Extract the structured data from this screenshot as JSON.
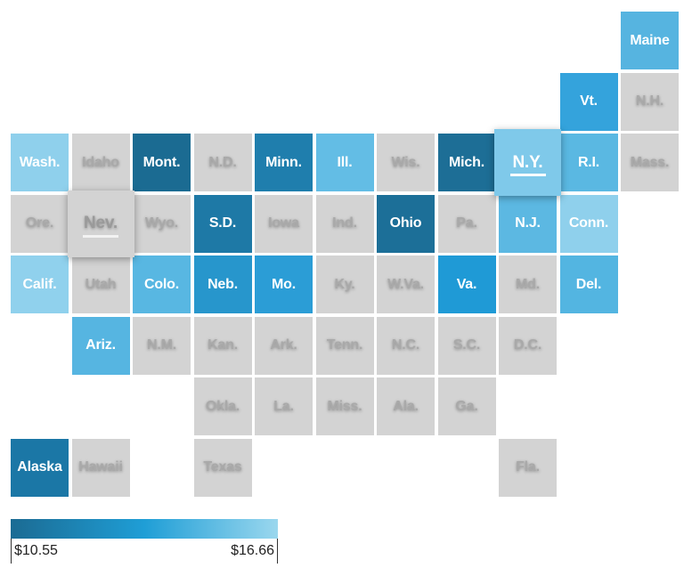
{
  "legend": {
    "min_label": "$10.55",
    "max_label": "$16.66",
    "min_color": "#1b6b93",
    "mid_color": "#1f9ed6",
    "max_color": "#9ad7ee"
  },
  "nodata_color": "#d3d3d3",
  "states": [
    {
      "abbr": "Maine",
      "col": 10,
      "row": 0,
      "color": "#56b4e0"
    },
    {
      "abbr": "Vt.",
      "col": 9,
      "row": 1,
      "color": "#34a3dc"
    },
    {
      "abbr": "N.H.",
      "col": 10,
      "row": 1,
      "color": null
    },
    {
      "abbr": "Wash.",
      "col": 0,
      "row": 2,
      "color": "#8fd0ec"
    },
    {
      "abbr": "Idaho",
      "col": 1,
      "row": 2,
      "color": null
    },
    {
      "abbr": "Mont.",
      "col": 2,
      "row": 2,
      "color": "#1b6b92"
    },
    {
      "abbr": "N.D.",
      "col": 3,
      "row": 2,
      "color": null
    },
    {
      "abbr": "Minn.",
      "col": 4,
      "row": 2,
      "color": "#1f7ead"
    },
    {
      "abbr": "Ill.",
      "col": 5,
      "row": 2,
      "color": "#63bde5"
    },
    {
      "abbr": "Wis.",
      "col": 6,
      "row": 2,
      "color": null
    },
    {
      "abbr": "Mich.",
      "col": 7,
      "row": 2,
      "color": "#1d6e96"
    },
    {
      "abbr": "N.Y.",
      "col": 8,
      "row": 2,
      "color": "#7fc9ea",
      "highlight": true
    },
    {
      "abbr": "R.I.",
      "col": 9,
      "row": 2,
      "color": "#5ab8e2"
    },
    {
      "abbr": "Mass.",
      "col": 10,
      "row": 2,
      "color": null
    },
    {
      "abbr": "Ore.",
      "col": 0,
      "row": 3,
      "color": null
    },
    {
      "abbr": "Nev.",
      "col": 1,
      "row": 3,
      "color": null,
      "highlight": true
    },
    {
      "abbr": "Wyo.",
      "col": 2,
      "row": 3,
      "color": null
    },
    {
      "abbr": "S.D.",
      "col": 3,
      "row": 3,
      "color": "#1e79a6"
    },
    {
      "abbr": "Iowa",
      "col": 4,
      "row": 3,
      "color": null
    },
    {
      "abbr": "Ind.",
      "col": 5,
      "row": 3,
      "color": null
    },
    {
      "abbr": "Ohio",
      "col": 6,
      "row": 3,
      "color": "#1c6f98"
    },
    {
      "abbr": "Pa.",
      "col": 7,
      "row": 3,
      "color": null
    },
    {
      "abbr": "N.J.",
      "col": 8,
      "row": 3,
      "color": "#5cb8e2"
    },
    {
      "abbr": "Conn.",
      "col": 9,
      "row": 3,
      "color": "#8fd0ec"
    },
    {
      "abbr": "Calif.",
      "col": 0,
      "row": 4,
      "color": "#90d1ed"
    },
    {
      "abbr": "Utah",
      "col": 1,
      "row": 4,
      "color": null
    },
    {
      "abbr": "Colo.",
      "col": 2,
      "row": 4,
      "color": "#58b7e2"
    },
    {
      "abbr": "Neb.",
      "col": 3,
      "row": 4,
      "color": "#2796cc"
    },
    {
      "abbr": "Mo.",
      "col": 4,
      "row": 4,
      "color": "#2b9dd6"
    },
    {
      "abbr": "Ky.",
      "col": 5,
      "row": 4,
      "color": null
    },
    {
      "abbr": "W.Va.",
      "col": 6,
      "row": 4,
      "color": null
    },
    {
      "abbr": "Va.",
      "col": 7,
      "row": 4,
      "color": "#1f9ad6"
    },
    {
      "abbr": "Md.",
      "col": 8,
      "row": 4,
      "color": null
    },
    {
      "abbr": "Del.",
      "col": 9,
      "row": 4,
      "color": "#53b5e1"
    },
    {
      "abbr": "Ariz.",
      "col": 1,
      "row": 5,
      "color": "#56b5e1"
    },
    {
      "abbr": "N.M.",
      "col": 2,
      "row": 5,
      "color": null
    },
    {
      "abbr": "Kan.",
      "col": 3,
      "row": 5,
      "color": null
    },
    {
      "abbr": "Ark.",
      "col": 4,
      "row": 5,
      "color": null
    },
    {
      "abbr": "Tenn.",
      "col": 5,
      "row": 5,
      "color": null
    },
    {
      "abbr": "N.C.",
      "col": 6,
      "row": 5,
      "color": null
    },
    {
      "abbr": "S.C.",
      "col": 7,
      "row": 5,
      "color": null
    },
    {
      "abbr": "D.C.",
      "col": 8,
      "row": 5,
      "color": null
    },
    {
      "abbr": "Okla.",
      "col": 3,
      "row": 6,
      "color": null
    },
    {
      "abbr": "La.",
      "col": 4,
      "row": 6,
      "color": null
    },
    {
      "abbr": "Miss.",
      "col": 5,
      "row": 6,
      "color": null
    },
    {
      "abbr": "Ala.",
      "col": 6,
      "row": 6,
      "color": null
    },
    {
      "abbr": "Ga.",
      "col": 7,
      "row": 6,
      "color": null
    },
    {
      "abbr": "Alaska",
      "col": 0,
      "row": 7,
      "color": "#1b77a6"
    },
    {
      "abbr": "Hawaii",
      "col": 1,
      "row": 7,
      "color": null
    },
    {
      "abbr": "Texas",
      "col": 3,
      "row": 7,
      "color": null
    },
    {
      "abbr": "Fla.",
      "col": 8,
      "row": 7,
      "color": null
    }
  ]
}
